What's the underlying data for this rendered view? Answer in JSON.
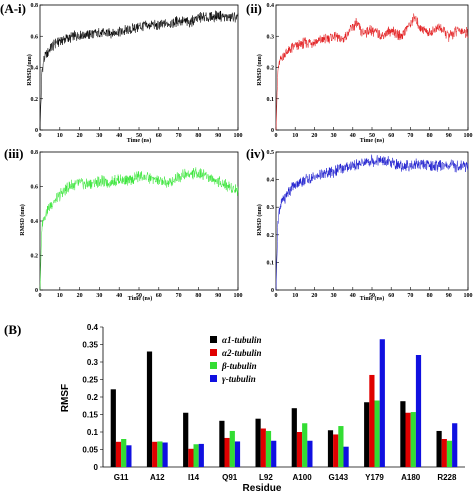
{
  "chart_data": [
    {
      "panel": "(A-i)",
      "type": "line",
      "ylabel": "RMSD (nm)",
      "xlabel": "Time (ns)",
      "xlim": [
        0,
        100
      ],
      "ylim": [
        0,
        0.8
      ],
      "xticks": [
        0,
        10,
        20,
        30,
        40,
        50,
        60,
        70,
        80,
        90,
        100
      ],
      "yticks": [
        0,
        0.2,
        0.4,
        0.6,
        0.8
      ],
      "color": "#000000",
      "series": [
        {
          "x": [
            0,
            1,
            2,
            4,
            6,
            8,
            10,
            12,
            15,
            20,
            25,
            30,
            35,
            40,
            45,
            50,
            55,
            60,
            65,
            70,
            75,
            80,
            85,
            90,
            95,
            100
          ],
          "values": [
            0.0,
            0.38,
            0.45,
            0.5,
            0.53,
            0.56,
            0.57,
            0.58,
            0.59,
            0.61,
            0.61,
            0.62,
            0.62,
            0.63,
            0.64,
            0.66,
            0.67,
            0.67,
            0.68,
            0.7,
            0.69,
            0.72,
            0.72,
            0.73,
            0.72,
            0.72
          ]
        }
      ]
    },
    {
      "panel": "(ii)",
      "type": "line",
      "ylabel": "RMSD (nm)",
      "xlabel": "Time (ns)",
      "xlim": [
        0,
        100
      ],
      "ylim": [
        0,
        0.4
      ],
      "xticks": [
        0,
        10,
        20,
        30,
        40,
        50,
        60,
        70,
        80,
        90,
        100
      ],
      "yticks": [
        0,
        0.1,
        0.2,
        0.3,
        0.4
      ],
      "color": "#e31a1c",
      "series": [
        {
          "x": [
            0,
            1,
            2,
            4,
            6,
            8,
            10,
            12,
            15,
            20,
            25,
            30,
            35,
            40,
            42,
            45,
            50,
            55,
            60,
            65,
            70,
            72,
            75,
            80,
            85,
            90,
            95,
            100
          ],
          "values": [
            0.0,
            0.19,
            0.22,
            0.24,
            0.25,
            0.26,
            0.27,
            0.27,
            0.28,
            0.28,
            0.29,
            0.3,
            0.29,
            0.33,
            0.34,
            0.31,
            0.32,
            0.3,
            0.32,
            0.3,
            0.34,
            0.36,
            0.33,
            0.31,
            0.33,
            0.3,
            0.32,
            0.31
          ]
        }
      ]
    },
    {
      "panel": "(iii)",
      "type": "line",
      "ylabel": "RMSD (nm)",
      "xlabel": "Time (ns)",
      "xlim": [
        0,
        100
      ],
      "ylim": [
        0,
        0.8
      ],
      "xticks": [
        0,
        10,
        20,
        30,
        40,
        50,
        60,
        70,
        80,
        90,
        100
      ],
      "yticks": [
        0,
        0.2,
        0.4,
        0.6,
        0.8
      ],
      "color": "#39e639",
      "series": [
        {
          "x": [
            0,
            1,
            2,
            4,
            6,
            8,
            10,
            12,
            15,
            20,
            25,
            30,
            35,
            40,
            45,
            50,
            55,
            60,
            65,
            70,
            75,
            80,
            85,
            90,
            95,
            100
          ],
          "values": [
            0.0,
            0.38,
            0.42,
            0.47,
            0.5,
            0.52,
            0.55,
            0.57,
            0.6,
            0.62,
            0.61,
            0.63,
            0.62,
            0.64,
            0.63,
            0.66,
            0.65,
            0.63,
            0.62,
            0.66,
            0.67,
            0.68,
            0.66,
            0.63,
            0.6,
            0.58
          ]
        }
      ]
    },
    {
      "panel": "(iv)",
      "type": "line",
      "ylabel": "RMSD (nm)",
      "xlabel": "Time (ns)",
      "xlim": [
        0,
        100
      ],
      "ylim": [
        0,
        0.5
      ],
      "xticks": [
        0,
        10,
        20,
        30,
        40,
        50,
        60,
        70,
        80,
        90,
        100
      ],
      "yticks": [
        0,
        0.1,
        0.2,
        0.3,
        0.4,
        0.5
      ],
      "color": "#1f1fcf",
      "series": [
        {
          "x": [
            0,
            1,
            2,
            4,
            6,
            8,
            10,
            12,
            15,
            20,
            25,
            30,
            35,
            40,
            45,
            50,
            55,
            60,
            65,
            70,
            75,
            80,
            85,
            90,
            95,
            100
          ],
          "values": [
            0.0,
            0.25,
            0.3,
            0.33,
            0.35,
            0.37,
            0.38,
            0.39,
            0.4,
            0.41,
            0.42,
            0.43,
            0.44,
            0.45,
            0.46,
            0.47,
            0.47,
            0.46,
            0.45,
            0.45,
            0.46,
            0.45,
            0.45,
            0.45,
            0.45,
            0.45
          ]
        }
      ]
    },
    {
      "panel": "(B)",
      "type": "bar",
      "ylabel": "RMSF",
      "xlabel": "Residue",
      "ylim": [
        0,
        0.4
      ],
      "yticks": [
        0,
        0.05,
        0.1,
        0.15,
        0.2,
        0.25,
        0.3,
        0.35,
        0.4
      ],
      "categories": [
        "G11",
        "A12",
        "I14",
        "Q91",
        "L92",
        "A100",
        "G143",
        "Y179",
        "A180",
        "R228"
      ],
      "series": [
        {
          "name": "α1-tubulin",
          "color": "#000000",
          "values": [
            0.222,
            0.33,
            0.155,
            0.132,
            0.138,
            0.168,
            0.105,
            0.185,
            0.188,
            0.103
          ]
        },
        {
          "name": "α2-tubulin",
          "color": "#e00000",
          "values": [
            0.072,
            0.072,
            0.052,
            0.083,
            0.11,
            0.1,
            0.093,
            0.263,
            0.155,
            0.08
          ]
        },
        {
          "name": "β-tubulin",
          "color": "#33dd33",
          "values": [
            0.08,
            0.073,
            0.065,
            0.103,
            0.103,
            0.125,
            0.117,
            0.19,
            0.157,
            0.075
          ]
        },
        {
          "name": "γ-tubulin",
          "color": "#1010e0",
          "values": [
            0.062,
            0.07,
            0.066,
            0.073,
            0.075,
            0.075,
            0.058,
            0.365,
            0.32,
            0.125
          ]
        }
      ]
    }
  ]
}
